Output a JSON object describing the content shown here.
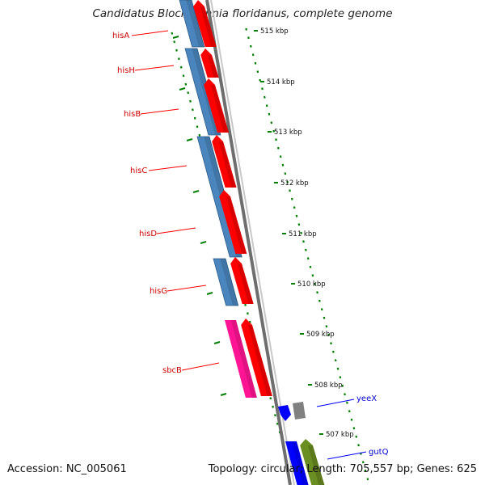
{
  "header": {
    "title": "Candidatus Blochmannia floridanus, complete genome"
  },
  "footer": {
    "accession": "Accession: NC_005061",
    "summary": "Topology: circular; Length: 705,557 bp; Genes: 625"
  },
  "colors": {
    "cds_forward": "#ff0000",
    "cds_reverse": "#4a86bd",
    "sbcB": "#ff1493",
    "yeeX": "#0000ff",
    "gutQ": "#6b8e23",
    "other": "#808080",
    "backbone": "#888888",
    "tick": "#008000",
    "label_red": "#cc0000",
    "label_blue": "#0000cc"
  },
  "scale": {
    "ticks": [
      "515 kbp",
      "514 kbp",
      "513 kbp",
      "512 kbp",
      "511 kbp",
      "510 kbp",
      "509 kbp",
      "508 kbp",
      "507 kbp"
    ]
  },
  "genes": [
    {
      "name": "hisA",
      "label_color": "red"
    },
    {
      "name": "hisH",
      "label_color": "red"
    },
    {
      "name": "hisB",
      "label_color": "red"
    },
    {
      "name": "hisC",
      "label_color": "red"
    },
    {
      "name": "hisD",
      "label_color": "red"
    },
    {
      "name": "hisG",
      "label_color": "red"
    },
    {
      "name": "sbcB",
      "label_color": "red"
    },
    {
      "name": "yeeX",
      "label_color": "blue"
    },
    {
      "name": "gutQ",
      "label_color": "blue"
    }
  ]
}
